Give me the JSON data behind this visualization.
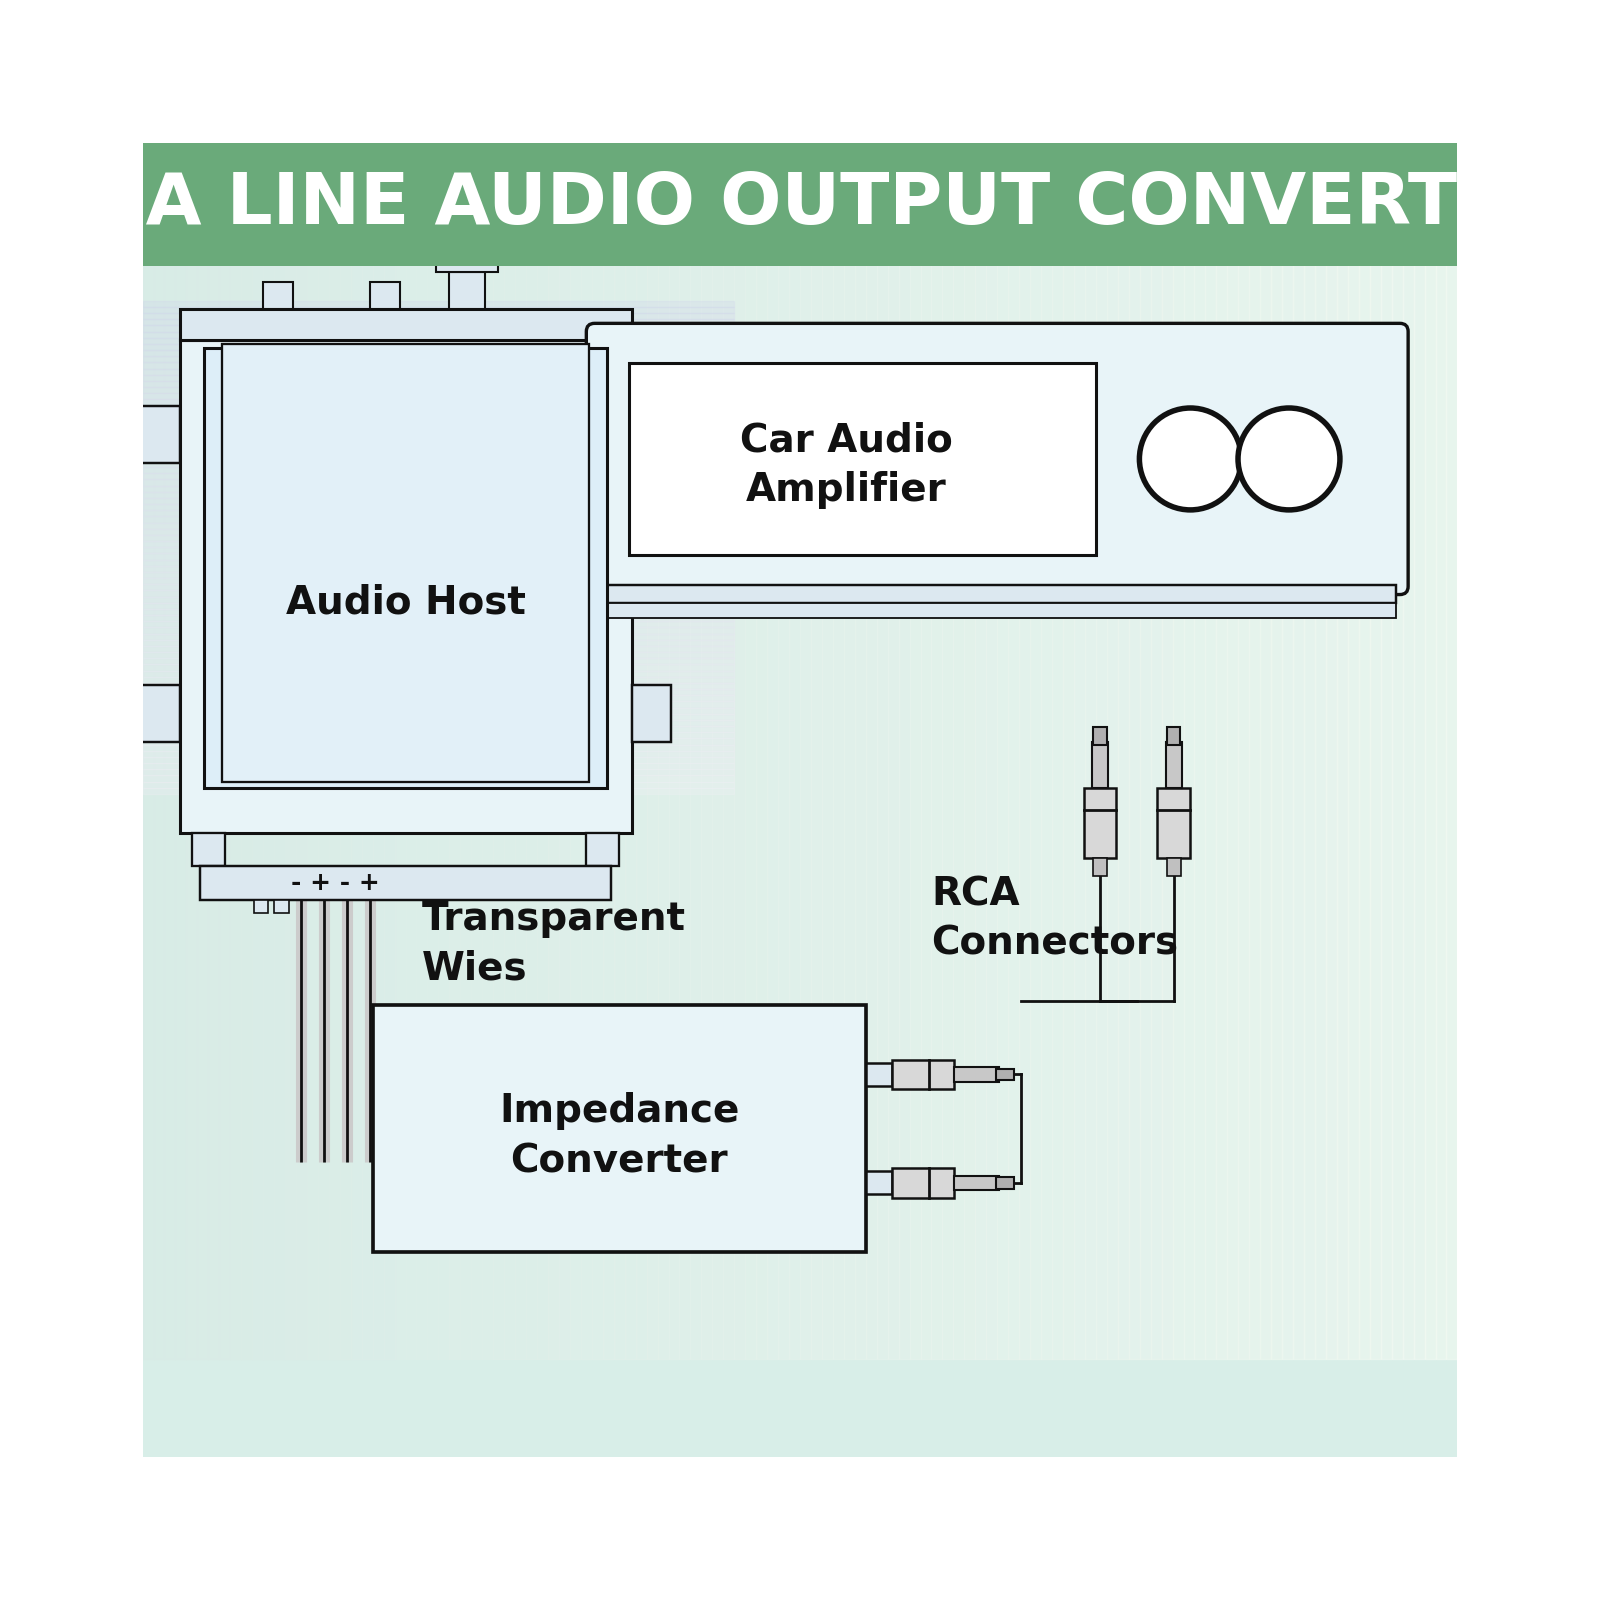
{
  "title": "RCA LINE AUDIO OUTPUT CONVERTER",
  "title_bg": "#6aaa7a",
  "title_color": "#ffffff",
  "line_color": "#111111",
  "fill_white": "#ffffff",
  "fill_light": "#e8f4f8",
  "fill_inner": "#ddeef8",
  "label_audio_host": "Audio Host",
  "label_amplifier_line1": "Car Audio",
  "label_amplifier_line2": "Amplifier",
  "label_transparent_wires_line1": "Transparent",
  "label_transparent_wires_line2": "Wies",
  "label_rca_line1": "RCA",
  "label_rca_line2": "Connectors",
  "label_impedance_line1": "Impedance",
  "label_impedance_line2": "Converter",
  "label_polarity": "- + - +",
  "font_label": 28,
  "font_title": 52,
  "font_small": 18
}
